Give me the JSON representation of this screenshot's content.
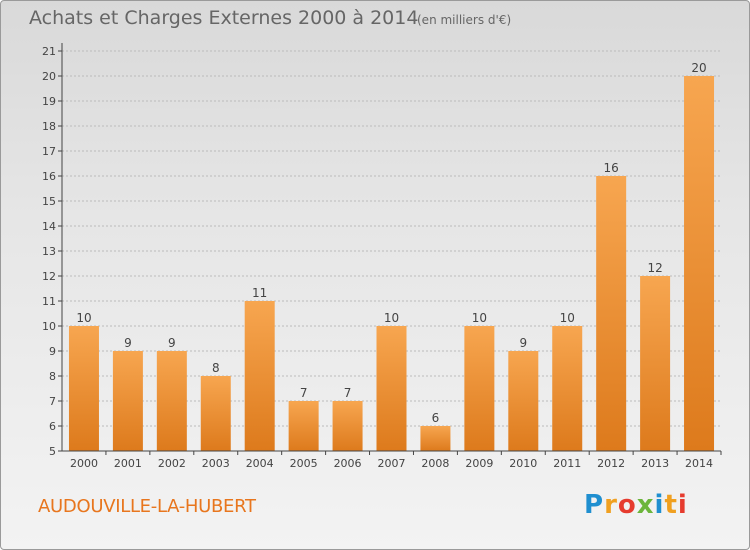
{
  "header": {
    "title": "Achats et Charges Externes 2000 à 2014",
    "unit": "(en milliers d'€)"
  },
  "footer": {
    "commune": "AUDOUVILLE-LA-HUBERT",
    "logo_text": "Proxiti",
    "logo_letters": [
      "P",
      "r",
      "o",
      "x",
      "i",
      "t",
      "i"
    ],
    "logo_colors": [
      "#1f8fd0",
      "#f0a020",
      "#e63b2e",
      "#6cb53b",
      "#1f8fd0",
      "#f0a020",
      "#e63b2e"
    ]
  },
  "colors": {
    "bar_top": "#f7a650",
    "bar_bottom": "#dd7a1c",
    "grid": "#bbbbbb",
    "axis": "#444444",
    "accent": "#e8761e"
  },
  "chart_data": {
    "type": "bar",
    "title": "Achats et Charges Externes 2000 à 2014",
    "subtitle": "(en milliers d'€)",
    "categories": [
      "2000",
      "2001",
      "2002",
      "2003",
      "2004",
      "2005",
      "2006",
      "2007",
      "2008",
      "2009",
      "2010",
      "2011",
      "2012",
      "2013",
      "2014"
    ],
    "values": [
      10,
      9,
      9,
      8,
      11,
      7,
      7,
      10,
      6,
      10,
      9,
      10,
      16,
      12,
      20
    ],
    "ylim": [
      5,
      21
    ],
    "yticks": [
      5,
      6,
      7,
      8,
      9,
      10,
      11,
      12,
      13,
      14,
      15,
      16,
      17,
      18,
      19,
      20,
      21
    ],
    "grid": true,
    "data_labels": true,
    "legend": "none"
  }
}
